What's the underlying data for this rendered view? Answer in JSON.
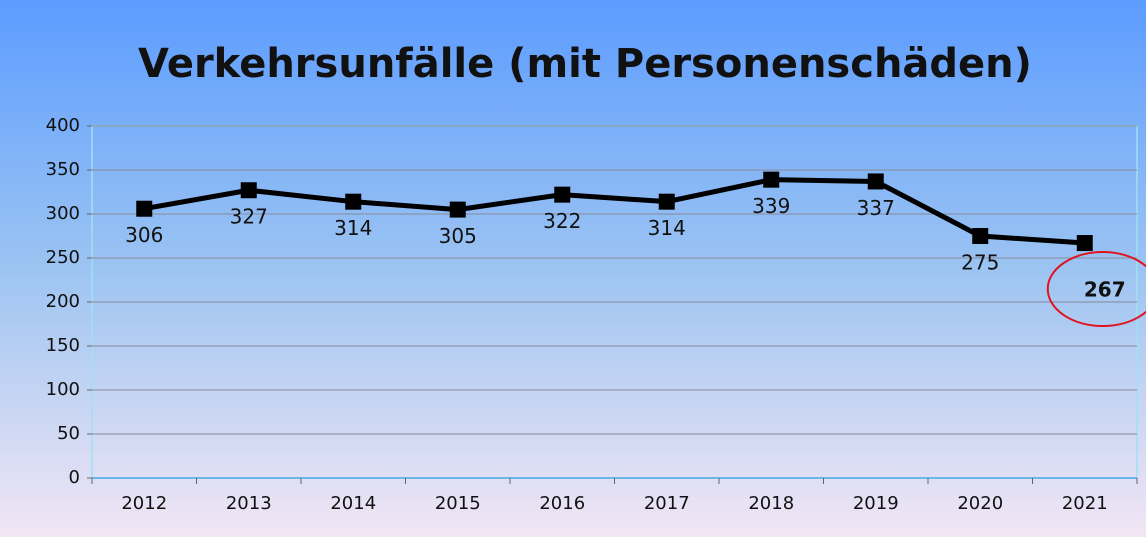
{
  "chart_data": {
    "type": "line",
    "title": "Verkehrsunfälle (mit Personenschäden)",
    "categories": [
      "2012",
      "2013",
      "2014",
      "2015",
      "2016",
      "2017",
      "2018",
      "2019",
      "2020",
      "2021"
    ],
    "series": [
      {
        "name": "Verkehrsunfälle",
        "color": "#000000",
        "values": [
          306,
          327,
          314,
          305,
          322,
          314,
          339,
          337,
          275,
          267
        ]
      }
    ],
    "ylim": [
      0,
      400
    ],
    "yticks": [
      0,
      50,
      100,
      150,
      200,
      250,
      300,
      350,
      400
    ],
    "grid": true
  }
}
